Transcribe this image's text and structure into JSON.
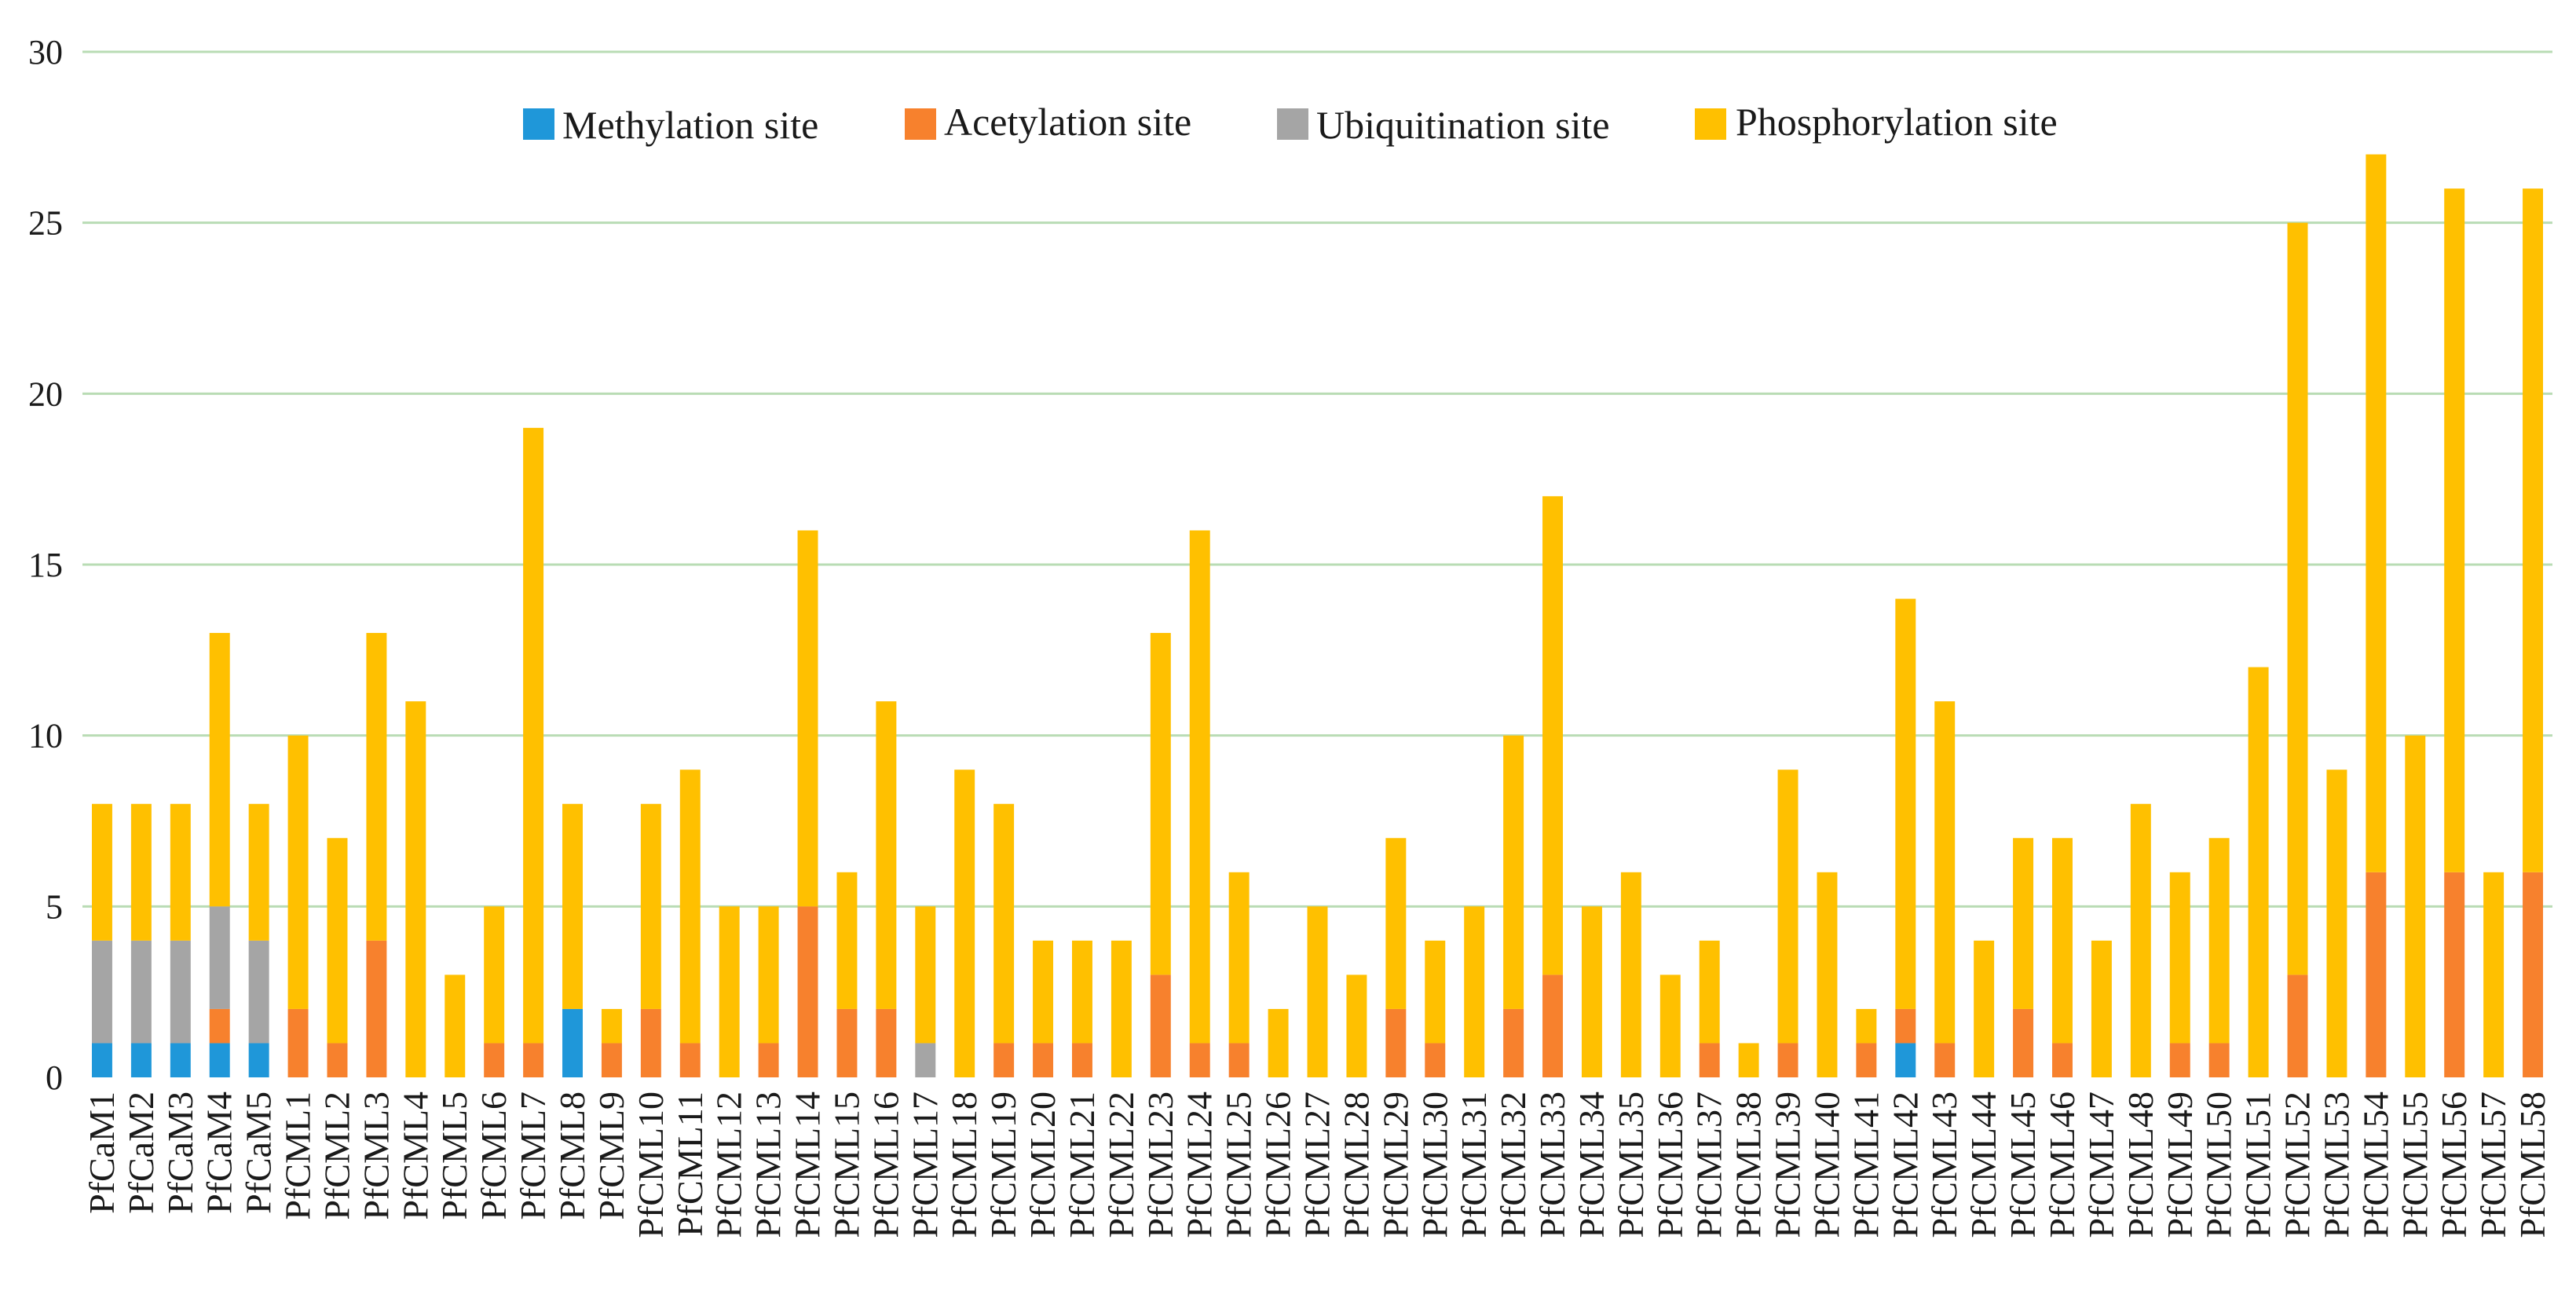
{
  "chart_data": {
    "type": "bar",
    "stacked": true,
    "title": "",
    "xlabel": "",
    "ylabel": "",
    "ylim": [
      0,
      30
    ],
    "yticks": [
      0,
      5,
      10,
      15,
      20,
      25,
      30
    ],
    "grid": true,
    "legend_position": "top",
    "colors": {
      "Methylation site": "#1f97d9",
      "Acetylation site": "#f7812d",
      "Ubiquitination site": "#a5a5a5",
      "Phosphorylation site": "#ffc000",
      "grid": "#b9dcb4"
    },
    "categories": [
      "PfCaM1",
      "PfCaM2",
      "PfCaM3",
      "PfCaM4",
      "PfCaM5",
      "PfCML1",
      "PfCML2",
      "PfCML3",
      "PfCML4",
      "PfCML5",
      "PfCML6",
      "PfCML7",
      "PfCML8",
      "PfCML9",
      "PfCML10",
      "PfCML11",
      "PfCML12",
      "PfCML13",
      "PfCML14",
      "PfCML15",
      "PfCML16",
      "PfCML17",
      "PfCML18",
      "PfCML19",
      "PfCML20",
      "PfCML21",
      "PfCML22",
      "PfCML23",
      "PfCML24",
      "PfCML25",
      "PfCML26",
      "PfCML27",
      "PfCML28",
      "PfCML29",
      "PfCML30",
      "PfCML31",
      "PfCML32",
      "PfCML33",
      "PfCML34",
      "PfCML35",
      "PfCML36",
      "PfCML37",
      "PfCML38",
      "PfCML39",
      "PfCML40",
      "PfCML41",
      "PfCML42",
      "PfCML43",
      "PfCML44",
      "PfCML45",
      "PfCML46",
      "PfCML47",
      "PfCML48",
      "PfCML49",
      "PfCML50",
      "PfCML51",
      "PfCML52",
      "PfCML53",
      "PfCML54",
      "PfCML55",
      "PfCML56",
      "PfCML57",
      "PfCML58"
    ],
    "series": [
      {
        "name": "Methylation site",
        "values": [
          1,
          1,
          1,
          1,
          1,
          0,
          0,
          0,
          0,
          0,
          0,
          0,
          2,
          0,
          0,
          0,
          0,
          0,
          0,
          0,
          0,
          0,
          0,
          0,
          0,
          0,
          0,
          0,
          0,
          0,
          0,
          0,
          0,
          0,
          0,
          0,
          0,
          0,
          0,
          0,
          0,
          0,
          0,
          0,
          0,
          0,
          1,
          0,
          0,
          0,
          0,
          0,
          0,
          0,
          0,
          0,
          0,
          0,
          0,
          0,
          0,
          0,
          0
        ]
      },
      {
        "name": "Acetylation site",
        "values": [
          0,
          0,
          0,
          1,
          0,
          2,
          1,
          4,
          0,
          0,
          1,
          1,
          0,
          1,
          2,
          1,
          0,
          1,
          5,
          2,
          2,
          0,
          0,
          1,
          1,
          1,
          0,
          3,
          1,
          1,
          0,
          0,
          0,
          2,
          1,
          0,
          2,
          3,
          0,
          0,
          0,
          1,
          0,
          1,
          0,
          1,
          1,
          1,
          0,
          2,
          1,
          0,
          0,
          1,
          1,
          0,
          3,
          0,
          6,
          0,
          6,
          0,
          6
        ]
      },
      {
        "name": "Ubiquitination site",
        "values": [
          3,
          3,
          3,
          3,
          3,
          0,
          0,
          0,
          0,
          0,
          0,
          0,
          0,
          0,
          0,
          0,
          0,
          0,
          0,
          0,
          0,
          1,
          0,
          0,
          0,
          0,
          0,
          0,
          0,
          0,
          0,
          0,
          0,
          0,
          0,
          0,
          0,
          0,
          0,
          0,
          0,
          0,
          0,
          0,
          0,
          0,
          0,
          0,
          0,
          0,
          0,
          0,
          0,
          0,
          0,
          0,
          0,
          0,
          0,
          0,
          0,
          0,
          0
        ]
      },
      {
        "name": "Phosphorylation site",
        "values": [
          4,
          4,
          4,
          8,
          4,
          8,
          6,
          9,
          11,
          3,
          4,
          18,
          6,
          1,
          6,
          8,
          5,
          4,
          11,
          4,
          9,
          4,
          9,
          7,
          3,
          3,
          4,
          10,
          15,
          5,
          2,
          5,
          3,
          5,
          3,
          5,
          8,
          14,
          5,
          6,
          3,
          3,
          1,
          8,
          6,
          1,
          12,
          10,
          4,
          5,
          6,
          4,
          8,
          5,
          6,
          12,
          22,
          9,
          21,
          10,
          20,
          6,
          20
        ]
      }
    ]
  }
}
